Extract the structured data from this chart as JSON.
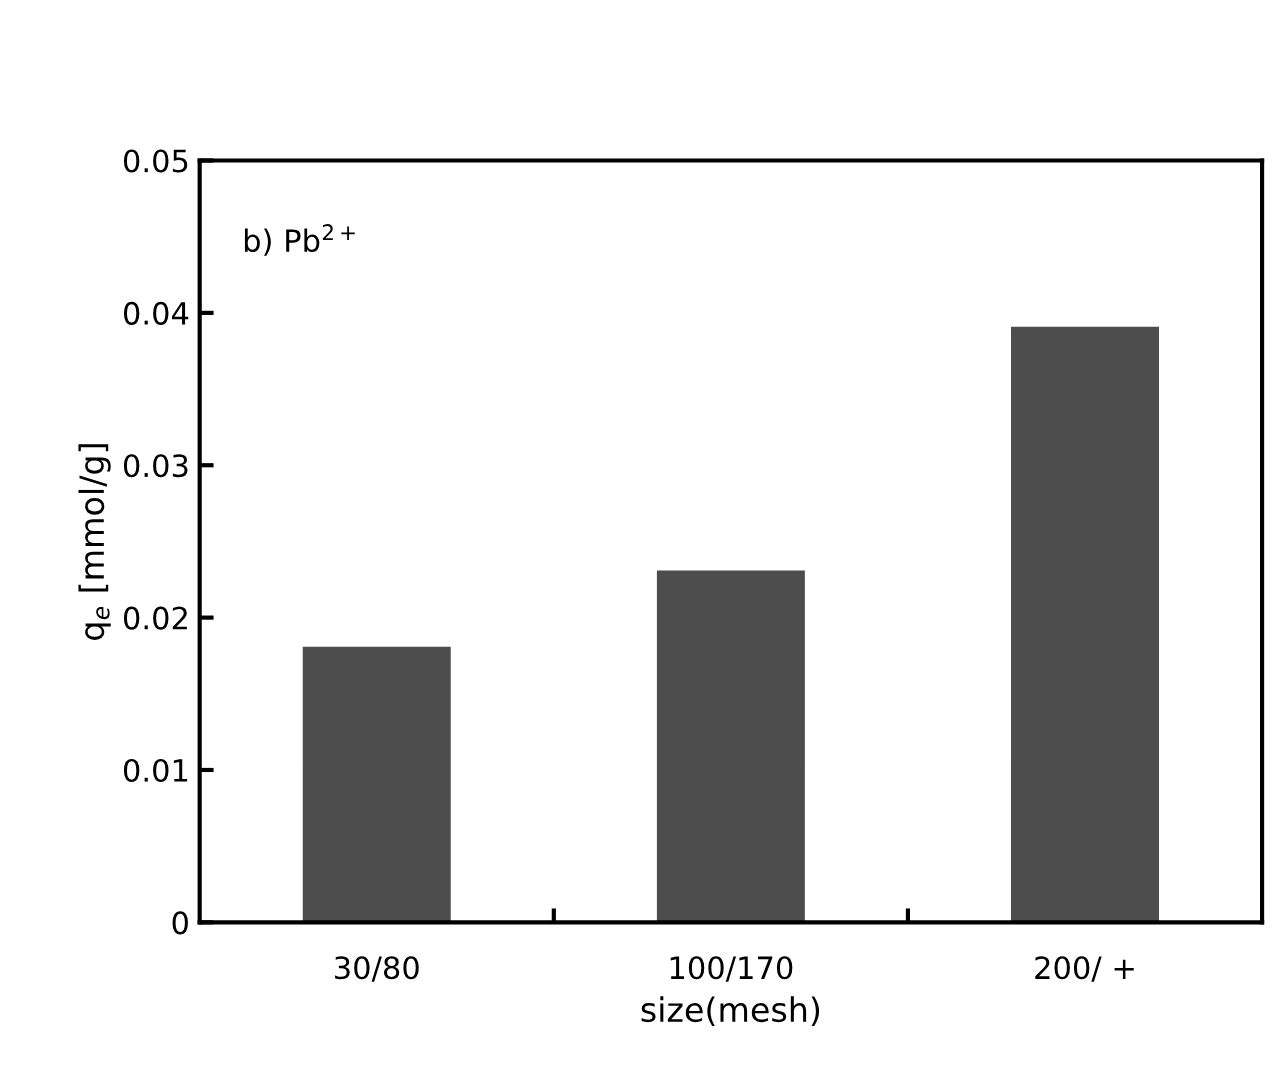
{
  "chart_data": {
    "type": "bar",
    "categories": [
      "30/80",
      "100/170",
      "200/ +"
    ],
    "values": [
      0.018,
      0.023,
      0.039
    ],
    "color": "#4d4d4d",
    "xlabel": "size(mesh)",
    "ylabel": "q$_{e}$ [mmol/g]",
    "annotations": [
      "b) Pb$^{2+}$"
    ],
    "ylim": [
      0,
      0.05
    ],
    "yticks": [
      0,
      0.01,
      0.02,
      0.03,
      0.04,
      0.05
    ],
    "grid": false,
    "legend": false
  }
}
